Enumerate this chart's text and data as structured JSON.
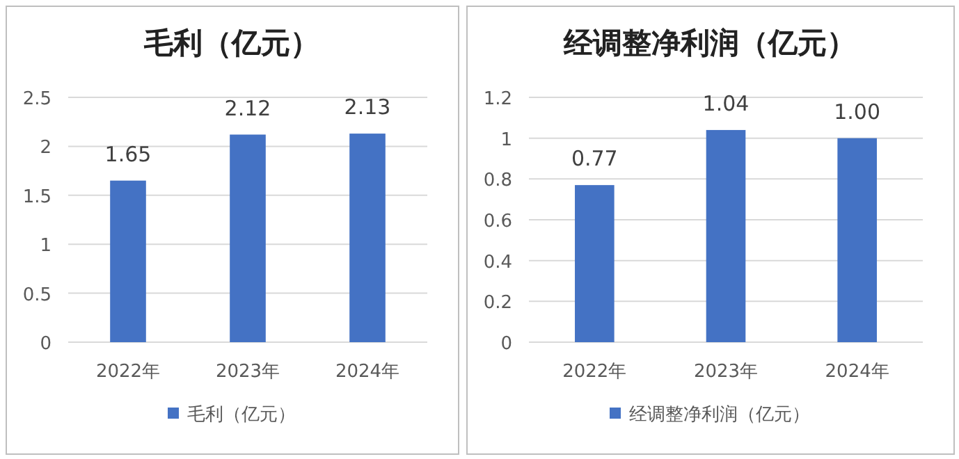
{
  "chart_data": [
    {
      "type": "bar",
      "title": "毛利（亿元）",
      "categories": [
        "2022年",
        "2023年",
        "2024年"
      ],
      "series": [
        {
          "name": "毛利（亿元）",
          "color": "#4472c4",
          "values": [
            1.65,
            2.12,
            2.13
          ],
          "value_labels": [
            "1.65",
            "2.12",
            "2.13"
          ]
        }
      ],
      "ylim": [
        0,
        2.5
      ],
      "yticks": [
        0,
        0.5,
        1,
        1.5,
        2,
        2.5
      ],
      "grid": "y",
      "legend": "bottom"
    },
    {
      "type": "bar",
      "title": "经调整净利润（亿元）",
      "categories": [
        "2022年",
        "2023年",
        "2024年"
      ],
      "series": [
        {
          "name": "经调整净利润（亿元）",
          "color": "#4472c4",
          "values": [
            0.77,
            1.04,
            1.0
          ],
          "value_labels": [
            "0.77",
            "1.04",
            "1.00"
          ]
        }
      ],
      "ylim": [
        0,
        1.2
      ],
      "yticks": [
        0,
        0.2,
        0.4,
        0.6,
        0.8,
        1,
        1.2
      ],
      "grid": "y",
      "legend": "bottom"
    }
  ]
}
